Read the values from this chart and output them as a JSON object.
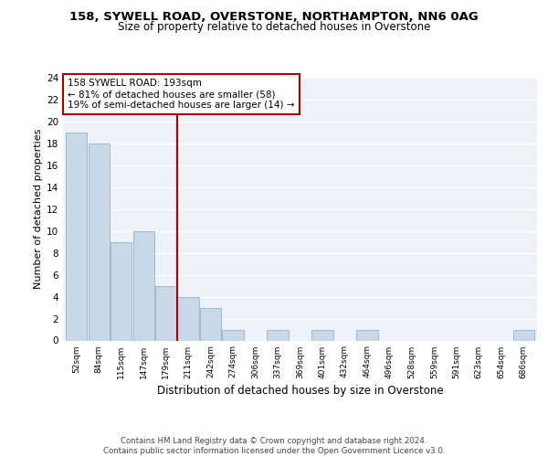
{
  "title": "158, SYWELL ROAD, OVERSTONE, NORTHAMPTON, NN6 0AG",
  "subtitle": "Size of property relative to detached houses in Overstone",
  "xlabel": "Distribution of detached houses by size in Overstone",
  "ylabel": "Number of detached properties",
  "categories": [
    "52sqm",
    "84sqm",
    "115sqm",
    "147sqm",
    "179sqm",
    "211sqm",
    "242sqm",
    "274sqm",
    "306sqm",
    "337sqm",
    "369sqm",
    "401sqm",
    "432sqm",
    "464sqm",
    "496sqm",
    "528sqm",
    "559sqm",
    "591sqm",
    "623sqm",
    "654sqm",
    "686sqm"
  ],
  "values": [
    19,
    18,
    9,
    10,
    5,
    4,
    3,
    1,
    0,
    1,
    0,
    1,
    0,
    1,
    0,
    0,
    0,
    0,
    0,
    0,
    1
  ],
  "bar_color": "#c8d8e8",
  "bar_edgecolor": "#a0b8cc",
  "vline_x": 4.5,
  "vline_color": "#aa0000",
  "annotation_text": "158 SYWELL ROAD: 193sqm\n← 81% of detached houses are smaller (58)\n19% of semi-detached houses are larger (14) →",
  "annotation_box_color": "#ffffff",
  "annotation_box_edgecolor": "#aa0000",
  "ylim": [
    0,
    24
  ],
  "yticks": [
    0,
    2,
    4,
    6,
    8,
    10,
    12,
    14,
    16,
    18,
    20,
    22,
    24
  ],
  "background_color": "#eef2f8",
  "footer": "Contains HM Land Registry data © Crown copyright and database right 2024.\nContains public sector information licensed under the Open Government Licence v3.0.",
  "title_fontsize": 9.5,
  "subtitle_fontsize": 8.5,
  "annotation_fontsize": 7.5,
  "ylabel_fontsize": 8,
  "xlabel_fontsize": 8.5,
  "footer_fontsize": 6.2
}
